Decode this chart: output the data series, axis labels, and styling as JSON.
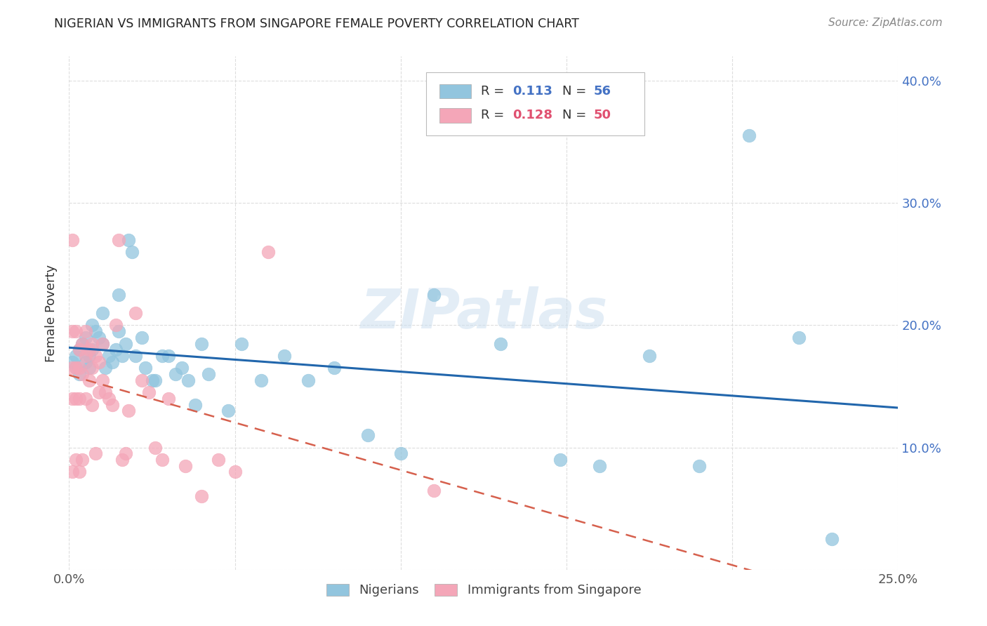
{
  "title": "NIGERIAN VS IMMIGRANTS FROM SINGAPORE FEMALE POVERTY CORRELATION CHART",
  "source": "Source: ZipAtlas.com",
  "ylabel": "Female Poverty",
  "watermark": "ZIPatlas",
  "xlim": [
    0.0,
    0.25
  ],
  "ylim": [
    0.0,
    0.42
  ],
  "blue_color": "#92c5de",
  "pink_color": "#f4a6b8",
  "line_blue": "#2166ac",
  "line_pink": "#d6604d",
  "legend_r1": "0.113",
  "legend_n1": "56",
  "legend_r2": "0.128",
  "legend_n2": "50",
  "background_color": "#ffffff",
  "grid_color": "#dddddd",
  "nigerians_x": [
    0.001,
    0.002,
    0.002,
    0.003,
    0.003,
    0.004,
    0.005,
    0.005,
    0.006,
    0.006,
    0.007,
    0.007,
    0.008,
    0.009,
    0.01,
    0.01,
    0.011,
    0.012,
    0.013,
    0.014,
    0.015,
    0.015,
    0.016,
    0.017,
    0.018,
    0.019,
    0.02,
    0.022,
    0.023,
    0.025,
    0.026,
    0.028,
    0.03,
    0.032,
    0.034,
    0.036,
    0.038,
    0.04,
    0.042,
    0.048,
    0.052,
    0.058,
    0.065,
    0.072,
    0.08,
    0.09,
    0.1,
    0.11,
    0.13,
    0.148,
    0.16,
    0.175,
    0.19,
    0.205,
    0.22,
    0.23
  ],
  "nigerians_y": [
    0.17,
    0.165,
    0.175,
    0.16,
    0.18,
    0.185,
    0.17,
    0.19,
    0.175,
    0.165,
    0.18,
    0.2,
    0.195,
    0.19,
    0.185,
    0.21,
    0.165,
    0.175,
    0.17,
    0.18,
    0.225,
    0.195,
    0.175,
    0.185,
    0.27,
    0.26,
    0.175,
    0.19,
    0.165,
    0.155,
    0.155,
    0.175,
    0.175,
    0.16,
    0.165,
    0.155,
    0.135,
    0.185,
    0.16,
    0.13,
    0.185,
    0.155,
    0.175,
    0.155,
    0.165,
    0.11,
    0.095,
    0.225,
    0.185,
    0.09,
    0.085,
    0.175,
    0.085,
    0.355,
    0.19,
    0.025
  ],
  "singapore_x": [
    0.001,
    0.001,
    0.001,
    0.001,
    0.001,
    0.002,
    0.002,
    0.002,
    0.002,
    0.003,
    0.003,
    0.003,
    0.003,
    0.004,
    0.004,
    0.004,
    0.005,
    0.005,
    0.005,
    0.006,
    0.006,
    0.007,
    0.007,
    0.007,
    0.008,
    0.008,
    0.009,
    0.009,
    0.01,
    0.01,
    0.011,
    0.012,
    0.013,
    0.014,
    0.015,
    0.016,
    0.017,
    0.018,
    0.02,
    0.022,
    0.024,
    0.026,
    0.028,
    0.03,
    0.035,
    0.04,
    0.045,
    0.05,
    0.06,
    0.11
  ],
  "singapore_y": [
    0.27,
    0.195,
    0.165,
    0.14,
    0.08,
    0.195,
    0.165,
    0.14,
    0.09,
    0.18,
    0.165,
    0.14,
    0.08,
    0.185,
    0.16,
    0.09,
    0.195,
    0.175,
    0.14,
    0.18,
    0.155,
    0.185,
    0.165,
    0.135,
    0.175,
    0.095,
    0.17,
    0.145,
    0.185,
    0.155,
    0.145,
    0.14,
    0.135,
    0.2,
    0.27,
    0.09,
    0.095,
    0.13,
    0.21,
    0.155,
    0.145,
    0.1,
    0.09,
    0.14,
    0.085,
    0.06,
    0.09,
    0.08,
    0.26,
    0.065
  ]
}
